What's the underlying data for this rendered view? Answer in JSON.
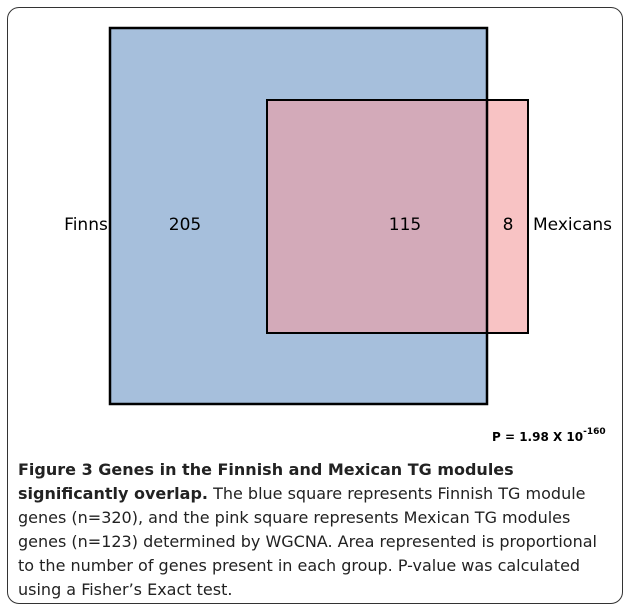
{
  "figure": {
    "left_label": "Finns",
    "right_label": "Mexicans",
    "counts": {
      "finns_only": 205,
      "overlap": 115,
      "mexicans_only": 8
    },
    "p_value": {
      "base": "P = 1.98 X 10",
      "exponent": "-160"
    }
  },
  "caption": {
    "title": "Figure 3 Genes in the Finnish and Mexican TG modules significantly overlap.",
    "text": "The blue square represents Finnish TG module genes (n=320), and the pink square represents Mexican TG modules genes (n=123) determined by WGCNA. Area represented is proportional to the number of genes present in each group. P-value was calculated using a Fisher’s Exact test."
  }
}
